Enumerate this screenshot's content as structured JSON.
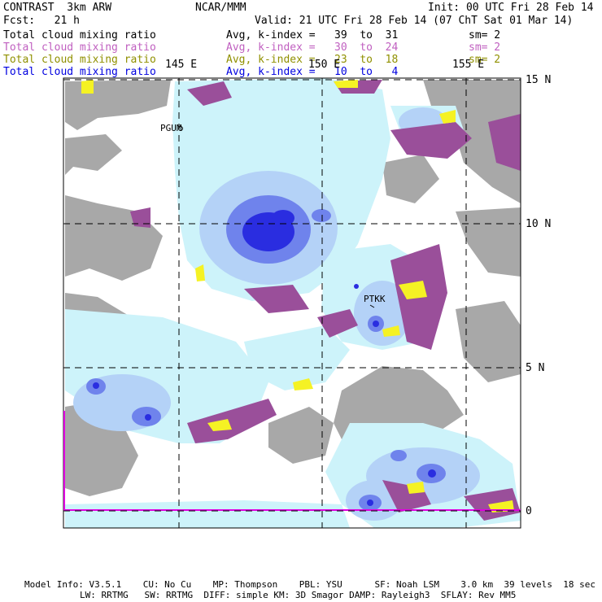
{
  "header": {
    "model": "CONTRAST  3km ARW",
    "org": "NCAR/MMM",
    "init": "Init: 00 UTC Fri 28 Feb 14",
    "fcst": "Fcst:   21 h",
    "valid": "Valid: 21 UTC Fri 28 Feb 14 (07 ChT Sat 01 Mar 14)"
  },
  "fields": [
    {
      "name": "Total cloud mixing ratio",
      "stat": "Avg, k-index =   39  to  31",
      "sm": "sm= 2",
      "color": "#000000"
    },
    {
      "name": "Total cloud mixing ratio",
      "stat": "Avg, k-index =   30  to  24",
      "sm": "sm= 2",
      "color": "#c060c0"
    },
    {
      "name": "Total cloud mixing ratio",
      "stat": "Avg, k-index =   23  to  18",
      "sm": "sm= 2",
      "color": "#909000"
    },
    {
      "name": "Total cloud mixing ratio",
      "stat": "Avg, k-index =   10  to   4",
      "sm": "",
      "color": "#0000e0"
    }
  ],
  "map": {
    "lon_labels": [
      "145 E",
      "150 E",
      "155 E"
    ],
    "lat_labels": [
      "15 N",
      "10 N",
      "5 N",
      "0"
    ],
    "stations": [
      "PGUM",
      "PTKK"
    ],
    "colors": {
      "land": "#a8a8a8",
      "cloud_light": "#cdf3fa",
      "cloud_mid": "#b4d2f7",
      "cloud_deep": "#6f83ec",
      "cloud_core": "#2a2de0",
      "violet": "#9a4f9a",
      "yellow": "#f5f224",
      "domain_edge": "#e000e0"
    }
  },
  "footer": {
    "line1": "Model Info: V3.5.1    CU: No Cu    MP: Thompson    PBL: YSU      SF: Noah LSM    3.0 km  39 levels  18 sec",
    "line2": "LW: RRTMG   SW: RRTMG  DIFF: simple KM: 3D Smagor DAMP: Rayleigh3  SFLAY: Rev MM5"
  }
}
